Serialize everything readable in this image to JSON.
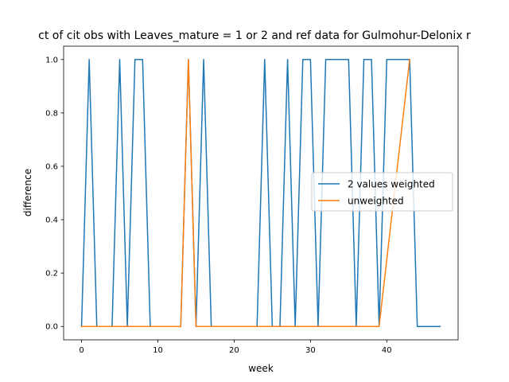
{
  "chart_data": {
    "type": "line",
    "title": "ct of cit obs with Leaves_mature = 1 or 2 and ref data for Gulmohur-Delonix r",
    "xlabel": "week",
    "ylabel": "difference",
    "xlim": [
      -2.35,
      49.35
    ],
    "ylim": [
      -0.05,
      1.05
    ],
    "xticks": [
      0,
      10,
      20,
      30,
      40
    ],
    "yticks": [
      0.0,
      0.2,
      0.4,
      0.6,
      0.8,
      1.0
    ],
    "xtick_labels": [
      "0",
      "10",
      "20",
      "30",
      "40"
    ],
    "ytick_labels": [
      "0.0",
      "0.2",
      "0.4",
      "0.6",
      "0.8",
      "1.0"
    ],
    "grid": false,
    "legend_position": "center-right",
    "series": [
      {
        "name": "2 values weighted",
        "color": "#1f77b4",
        "x": [
          0,
          1,
          2,
          3,
          4,
          5,
          6,
          7,
          8,
          9,
          10,
          11,
          12,
          13,
          14,
          15,
          16,
          17,
          18,
          19,
          20,
          21,
          22,
          23,
          24,
          25,
          26,
          27,
          28,
          29,
          30,
          31,
          32,
          33,
          34,
          35,
          36,
          37,
          38,
          39,
          40,
          41,
          42,
          43,
          44,
          45,
          46,
          47
        ],
        "y": [
          0,
          1,
          0,
          0,
          0,
          1,
          0,
          1,
          1,
          0,
          0,
          0,
          0,
          0,
          1,
          0,
          1,
          0,
          0,
          0,
          0,
          0,
          0,
          0,
          1,
          0,
          0,
          1,
          0,
          1,
          1,
          0,
          1,
          1,
          1,
          1,
          0,
          1,
          1,
          0,
          1,
          1,
          1,
          1,
          0,
          0,
          0,
          0
        ]
      },
      {
        "name": "unweighted",
        "color": "#ff7f0e",
        "x": [
          0,
          1,
          2,
          3,
          4,
          5,
          6,
          7,
          8,
          9,
          10,
          11,
          12,
          13,
          14,
          15,
          16,
          17,
          18,
          19,
          20,
          21,
          22,
          23,
          24,
          25,
          26,
          27,
          28,
          29,
          30,
          31,
          32,
          33,
          34,
          35,
          36,
          37,
          38,
          39,
          43
        ],
        "y": [
          0,
          0,
          0,
          0,
          0,
          0,
          0,
          0,
          0,
          0,
          0,
          0,
          0,
          0,
          1,
          0,
          0,
          0,
          0,
          0,
          0,
          0,
          0,
          0,
          0,
          0,
          0,
          0,
          0,
          0,
          0,
          0,
          0,
          0,
          0,
          0,
          0,
          0,
          0,
          0,
          1
        ]
      }
    ]
  }
}
